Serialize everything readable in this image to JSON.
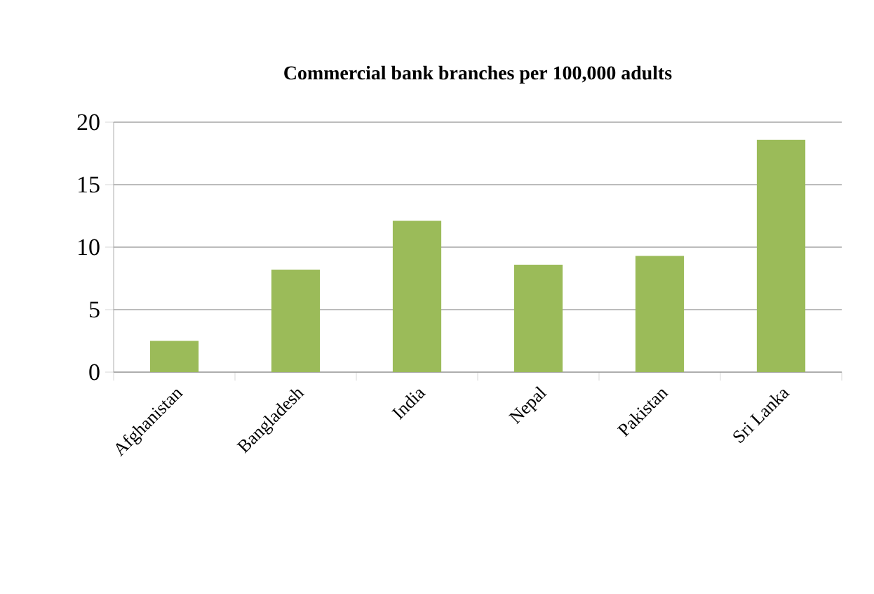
{
  "chart_data": {
    "type": "bar",
    "title": "Commercial bank branches per 100,000 adults",
    "categories": [
      "Afghanistan",
      "Bangladesh",
      "India",
      "Nepal",
      "Pakistan",
      "Sri Lanka"
    ],
    "values": [
      2.5,
      8.2,
      12.1,
      8.6,
      9.3,
      18.6
    ],
    "color": "#9bbb59",
    "ylim": [
      0,
      20
    ],
    "yticks": [
      0,
      5,
      10,
      15,
      20
    ],
    "grid": "y"
  }
}
